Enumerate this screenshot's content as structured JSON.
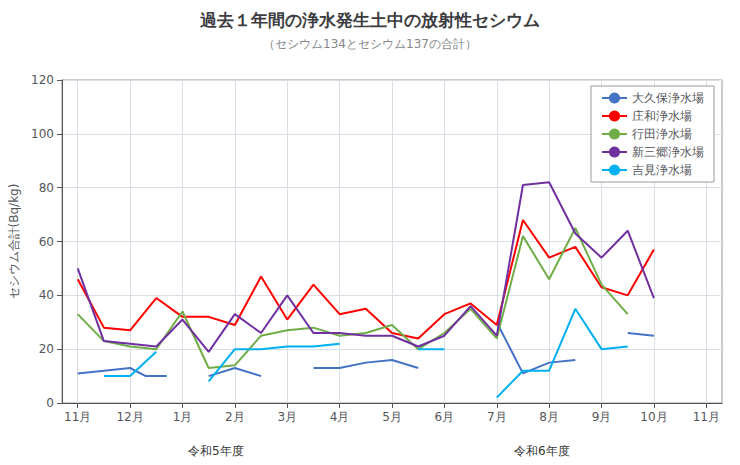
{
  "chart_data": {
    "type": "line",
    "title": "過去１年間の浄水発生土中の放射性セシウム",
    "subtitle": "（セシウム134とセシウム137の合計）",
    "y_label": "セシウム合計(Bq/kg)",
    "xlim": [
      -0.3,
      12.3
    ],
    "xticks": [
      {
        "value": 0,
        "label": "11月"
      },
      {
        "value": 1,
        "label": "12月"
      },
      {
        "value": 2,
        "label": "1月"
      },
      {
        "value": 3,
        "label": "2月"
      },
      {
        "value": 4,
        "label": "3月"
      },
      {
        "value": 5,
        "label": "4月"
      },
      {
        "value": 6,
        "label": "5月"
      },
      {
        "value": 7,
        "label": "6月"
      },
      {
        "value": 8,
        "label": "7月"
      },
      {
        "value": 9,
        "label": "8月"
      },
      {
        "value": 10,
        "label": "9月"
      },
      {
        "value": 11,
        "label": "10月"
      },
      {
        "value": 12,
        "label": "11月"
      }
    ],
    "ylim": [
      0,
      120
    ],
    "yticks": [
      0,
      20,
      40,
      60,
      80,
      100,
      120
    ],
    "grid": true,
    "legend": "upper right",
    "annotations": [
      "令和5年度",
      "令和6年度"
    ],
    "series": [
      {
        "name": "大久保浄水場",
        "color": "#4472C4",
        "x": [
          0,
          0.5,
          1.0,
          1.3,
          1.7,
          2.0,
          2.5,
          3.0,
          3.5,
          4.0,
          4.5,
          5.0,
          5.5,
          6.0,
          6.5,
          7.0,
          7.5,
          8.0,
          8.5,
          9.0,
          9.5,
          10.0,
          10.5,
          11.0,
          11.5,
          12.0
        ],
        "values": [
          11,
          12,
          13,
          10,
          10,
          null,
          10,
          13,
          10,
          null,
          13,
          13,
          15,
          16,
          13,
          null,
          null,
          30,
          11,
          15,
          16,
          null,
          26,
          25,
          null,
          null
        ]
      },
      {
        "name": "庄和浄水場",
        "color": "#FF0000",
        "x": [
          0,
          0.5,
          1.0,
          1.5,
          2.0,
          2.5,
          3.0,
          3.5,
          4.0,
          4.5,
          5.0,
          5.5,
          6.0,
          6.5,
          7.0,
          7.5,
          8.0,
          8.5,
          9.0,
          9.5,
          10.0,
          10.5,
          11.0,
          11.5,
          12.0
        ],
        "values": [
          46,
          28,
          27,
          39,
          32,
          32,
          29,
          47,
          31,
          44,
          33,
          35,
          26,
          24,
          33,
          37,
          29,
          68,
          54,
          58,
          43,
          40,
          57,
          null,
          null
        ]
      },
      {
        "name": "行田浄水場",
        "color": "#70AD47",
        "x": [
          0,
          0.5,
          1.0,
          1.5,
          2.0,
          2.5,
          3.0,
          3.5,
          4.0,
          4.5,
          5.0,
          5.5,
          6.0,
          6.5,
          7.0,
          7.5,
          8.0,
          8.5,
          9.0,
          9.5,
          10.0,
          10.5,
          11.0,
          11.5,
          12.0
        ],
        "values": [
          33,
          23,
          21,
          20,
          34,
          13,
          14,
          25,
          27,
          28,
          25,
          26,
          29,
          20,
          26,
          35,
          24,
          62,
          46,
          65,
          44,
          33,
          null,
          null,
          null
        ]
      },
      {
        "name": "新三郷浄水場",
        "color": "#7030A0",
        "x": [
          0,
          0.5,
          1.0,
          1.5,
          2.0,
          2.5,
          3.0,
          3.5,
          4.0,
          4.5,
          5.0,
          5.5,
          6.0,
          6.5,
          7.0,
          7.5,
          8.0,
          8.5,
          9.0,
          9.5,
          10.0,
          10.5,
          11.0,
          11.5,
          12.0
        ],
        "values": [
          50,
          23,
          22,
          21,
          31,
          19,
          33,
          26,
          40,
          26,
          26,
          25,
          25,
          21,
          25,
          36,
          25,
          81,
          82,
          63,
          54,
          64,
          39,
          null,
          null
        ]
      },
      {
        "name": "吉見浄水場",
        "color": "#00B0F0",
        "x": [
          0,
          0.5,
          1.0,
          1.5,
          2.0,
          2.5,
          3.0,
          3.5,
          4.0,
          4.5,
          5.0,
          5.5,
          6.0,
          6.5,
          7.0,
          7.5,
          8.0,
          8.5,
          9.0,
          9.5,
          10.0,
          10.5,
          11.0,
          11.5,
          12.0
        ],
        "values": [
          null,
          10,
          10,
          19,
          null,
          8,
          20,
          20,
          21,
          21,
          22,
          null,
          null,
          20,
          20,
          null,
          2,
          12,
          12,
          35,
          20,
          21,
          null,
          null,
          null
        ]
      }
    ]
  }
}
